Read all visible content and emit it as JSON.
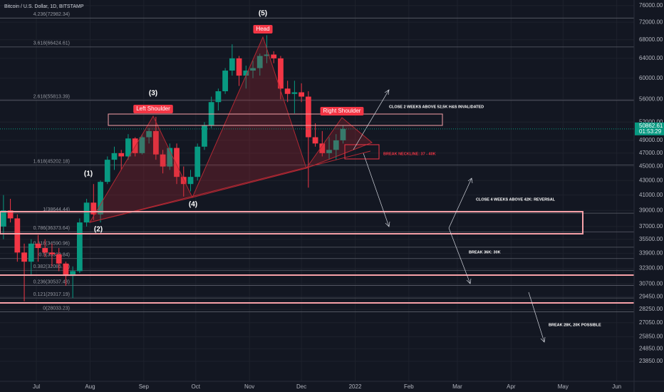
{
  "header": {
    "symbol": "Bitcoin / U.S. Dollar, 1D, BITSTAMP"
  },
  "chart_data": {
    "type": "candlestick",
    "scale": "log",
    "up_color": "#089981",
    "down_color": "#f23645",
    "ylim": [
      22350,
      77400
    ],
    "xlim": [
      "2021-06-10",
      "2022-06-11"
    ],
    "yticks": [
      {
        "value": 76000,
        "label": "76000.00"
      },
      {
        "value": 72000,
        "label": "72000.00"
      },
      {
        "value": 68000,
        "label": "68000.00"
      },
      {
        "value": 64000,
        "label": "64000.00"
      },
      {
        "value": 60000,
        "label": "60000.00"
      },
      {
        "value": 56000,
        "label": "56000.00"
      },
      {
        "value": 52000,
        "label": "52000.00"
      },
      {
        "value": 49000,
        "label": "49000.00"
      },
      {
        "value": 47000,
        "label": "47000.00"
      },
      {
        "value": 45000,
        "label": "45000.00"
      },
      {
        "value": 43000,
        "label": "43000.00"
      },
      {
        "value": 41000,
        "label": "41000.00"
      },
      {
        "value": 39000,
        "label": "39000.00"
      },
      {
        "value": 37000,
        "label": "37000.00"
      },
      {
        "value": 35500,
        "label": "35500.00"
      },
      {
        "value": 33900,
        "label": "33900.00"
      },
      {
        "value": 32300,
        "label": "32300.00"
      },
      {
        "value": 30700,
        "label": "30700.00"
      },
      {
        "value": 29450,
        "label": "29450.00"
      },
      {
        "value": 28250,
        "label": "28250.00"
      },
      {
        "value": 27050,
        "label": "27050.00"
      },
      {
        "value": 25850,
        "label": "25850.00"
      },
      {
        "value": 24850,
        "label": "24850.00"
      },
      {
        "value": 23850,
        "label": "23850.00"
      }
    ],
    "xticks": [
      {
        "value": "2021-07-01",
        "label": "Jul"
      },
      {
        "value": "2021-08-01",
        "label": "Aug"
      },
      {
        "value": "2021-09-01",
        "label": "Sep"
      },
      {
        "value": "2021-10-01",
        "label": "Oct"
      },
      {
        "value": "2021-11-01",
        "label": "Nov"
      },
      {
        "value": "2021-12-01",
        "label": "Dec"
      },
      {
        "value": "2022-01-01",
        "label": "2022"
      },
      {
        "value": "2022-02-01",
        "label": "Feb"
      },
      {
        "value": "2022-03-01",
        "label": "Mar"
      },
      {
        "value": "2022-04-01",
        "label": "Apr"
      },
      {
        "value": "2022-05-01",
        "label": "May"
      },
      {
        "value": "2022-06-01",
        "label": "Jun"
      }
    ],
    "x": [
      "2021-06-10",
      "2021-06-14",
      "2021-06-18",
      "2021-06-22",
      "2021-06-26",
      "2021-06-30",
      "2021-07-04",
      "2021-07-08",
      "2021-07-12",
      "2021-07-16",
      "2021-07-20",
      "2021-07-24",
      "2021-07-28",
      "2021-08-01",
      "2021-08-05",
      "2021-08-09",
      "2021-08-13",
      "2021-08-17",
      "2021-08-21",
      "2021-08-25",
      "2021-08-29",
      "2021-09-02",
      "2021-09-06",
      "2021-09-10",
      "2021-09-14",
      "2021-09-18",
      "2021-09-22",
      "2021-09-26",
      "2021-09-30",
      "2021-10-04",
      "2021-10-08",
      "2021-10-12",
      "2021-10-16",
      "2021-10-20",
      "2021-10-24",
      "2021-10-28",
      "2021-11-01",
      "2021-11-05",
      "2021-11-09",
      "2021-11-13",
      "2021-11-17",
      "2021-11-21",
      "2021-11-25",
      "2021-11-29",
      "2021-12-03",
      "2021-12-07",
      "2021-12-11",
      "2021-12-15",
      "2021-12-19",
      "2021-12-23"
    ],
    "open": [
      37000,
      39000,
      38000,
      34000,
      33000,
      35000,
      34500,
      34000,
      33800,
      32800,
      31500,
      32000,
      37500,
      40000,
      38500,
      42800,
      46000,
      47000,
      46500,
      49300,
      47000,
      49500,
      50500,
      46800,
      45000,
      47800,
      43500,
      42500,
      43500,
      48000,
      51500,
      55500,
      57500,
      61500,
      64000,
      60500,
      61500,
      62000,
      64500,
      64800,
      64000,
      58000,
      57000,
      57300,
      56500,
      49500,
      48500,
      47000,
      47500,
      49000
    ],
    "high": [
      41000,
      40500,
      38500,
      35000,
      35500,
      36000,
      35500,
      35000,
      34500,
      33000,
      32500,
      38000,
      40500,
      42500,
      43000,
      46500,
      48000,
      47500,
      50000,
      49500,
      50000,
      51000,
      52900,
      47500,
      48500,
      48500,
      45000,
      44500,
      48500,
      52000,
      56500,
      58000,
      62000,
      67000,
      64500,
      62500,
      63500,
      65000,
      69000,
      65500,
      64500,
      59500,
      59500,
      59000,
      57500,
      51800,
      50500,
      49500,
      50000,
      51500
    ],
    "low": [
      35500,
      37500,
      33000,
      29000,
      31500,
      33000,
      33500,
      32500,
      32000,
      30500,
      29300,
      31800,
      37000,
      37800,
      37500,
      42500,
      44500,
      44500,
      46000,
      46500,
      46800,
      48500,
      46000,
      44000,
      44500,
      42500,
      40800,
      41500,
      43000,
      47500,
      51000,
      54000,
      57000,
      60500,
      58500,
      58000,
      60000,
      60500,
      63000,
      63000,
      56000,
      55500,
      53500,
      55500,
      42000,
      48000,
      46500,
      46000,
      46000,
      48500
    ],
    "close": [
      39000,
      38000,
      34000,
      33000,
      35000,
      34500,
      34000,
      33800,
      32800,
      31500,
      32000,
      37500,
      40000,
      38500,
      42800,
      46000,
      47000,
      46500,
      49300,
      47000,
      49500,
      50500,
      46800,
      45000,
      47800,
      43500,
      42500,
      43500,
      48000,
      51500,
      55500,
      57500,
      61500,
      64000,
      60500,
      61500,
      62000,
      64500,
      64800,
      64000,
      58000,
      57000,
      57300,
      56500,
      49500,
      48500,
      47000,
      47500,
      49000,
      50862.61
    ],
    "last_price": {
      "value": 50862.61,
      "label": "50862.61"
    },
    "countdown": "01:53:29",
    "fib_levels": [
      {
        "value": 72982.34,
        "label": "4.236(72982.34)"
      },
      {
        "value": 66424.61,
        "label": "3.618(66424.61)"
      },
      {
        "value": 55813.39,
        "label": "2.618(55813.39)"
      },
      {
        "value": 45202.18,
        "label": "1.618(45202.18)"
      },
      {
        "value": 38644.44,
        "label": "1(38644.44)"
      },
      {
        "value": 36373.64,
        "label": "0.786(36373.64)"
      },
      {
        "value": 34590.96,
        "label": "0.618(34590.96)"
      },
      {
        "value": 33338.84,
        "label": "0.5(33338.84)"
      },
      {
        "value": 32086.7,
        "label": "0.382(32086.70)"
      },
      {
        "value": 30537.48,
        "label": "0.236(30537.48)"
      },
      {
        "value": 29317.19,
        "label": "0.121(29317.19)"
      },
      {
        "value": 28033.23,
        "label": "0(28033.23)"
      }
    ],
    "annotations": [
      "(5)",
      "Head",
      "(3)",
      "Left Shoulder",
      "(1)",
      "(2)",
      "(4)",
      "Right Shoulder",
      "CLOSE 2 WEEKS ABOVE 52,5K H&S INVALIDATED",
      "BREAK NECKLINE: 37 - 40K",
      "CLOSE 4 WEEKS ABOVE 42K: REVERSAL",
      "BREAK 36K: 30K",
      "BREAK 28K, 20K POSSIBLE"
    ]
  }
}
